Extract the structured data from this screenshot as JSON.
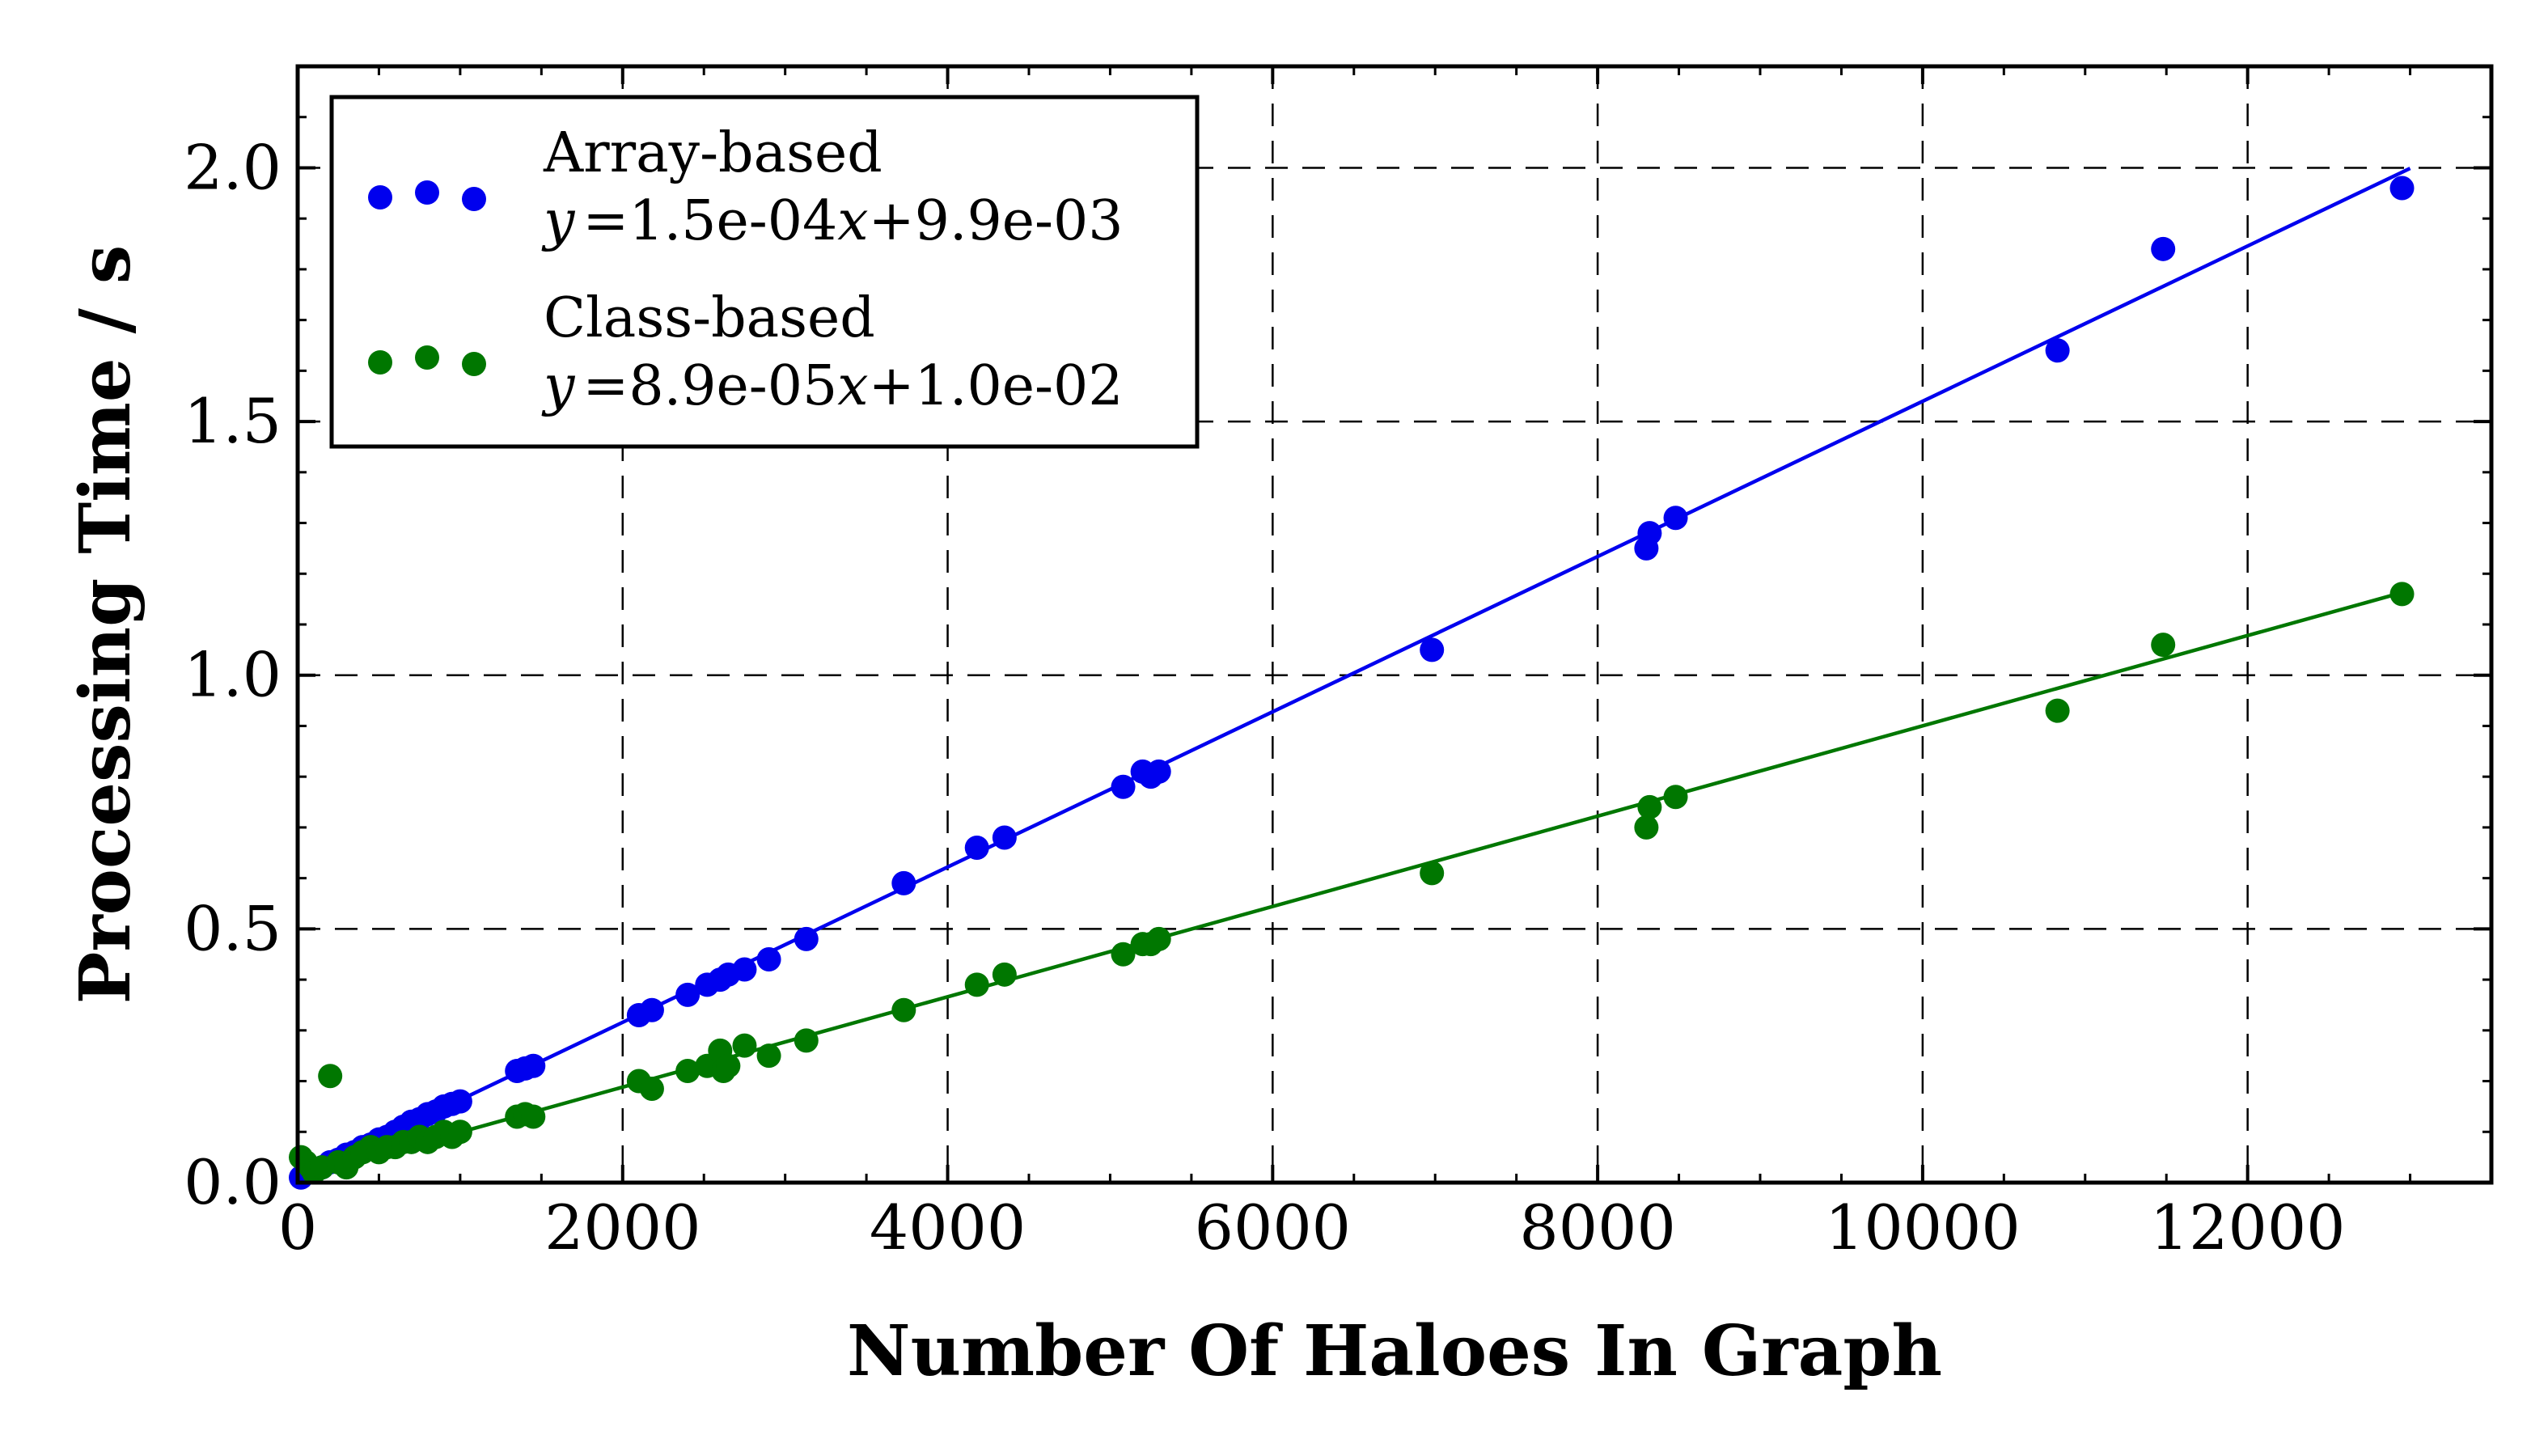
{
  "chart_data": {
    "type": "scatter",
    "title": "",
    "xlabel": "Number Of Haloes In Graph",
    "ylabel": "Processing Time / s",
    "xlim": [
      0,
      13500
    ],
    "ylim": [
      0,
      2.2
    ],
    "xticks": [
      0,
      2000,
      4000,
      6000,
      8000,
      10000,
      12000
    ],
    "yticks": [
      0.0,
      0.5,
      1.0,
      1.5,
      2.0
    ],
    "xtick_labels": [
      "0",
      "2000",
      "4000",
      "6000",
      "8000",
      "10000",
      "12000"
    ],
    "ytick_labels": [
      "0.0",
      "0.5",
      "1.0",
      "1.5",
      "2.0"
    ],
    "grid": true,
    "grid_style": "dashed",
    "legend_position": "top-left",
    "series": [
      {
        "name": "Array-based",
        "fit_label": "=1.5e-04",
        "fit_prefix": "y",
        "fit_x": "x",
        "fit_suffix": "+9.9e-03",
        "color": "#0000ee",
        "fit": {
          "slope": 0.000153,
          "intercept": 0.0099
        },
        "x": [
          20,
          60,
          100,
          150,
          200,
          250,
          300,
          350,
          400,
          450,
          500,
          550,
          600,
          650,
          700,
          750,
          800,
          850,
          900,
          950,
          1000,
          1350,
          1400,
          1450,
          2100,
          2180,
          2400,
          2520,
          2600,
          2650,
          2750,
          2900,
          3130,
          3730,
          4180,
          4350,
          5080,
          5200,
          5250,
          5300,
          6980,
          8300,
          8320,
          8480,
          10830,
          11480,
          12950
        ],
        "y": [
          0.01,
          0.02,
          0.025,
          0.03,
          0.04,
          0.045,
          0.055,
          0.06,
          0.07,
          0.075,
          0.085,
          0.09,
          0.1,
          0.11,
          0.12,
          0.125,
          0.135,
          0.14,
          0.15,
          0.155,
          0.16,
          0.22,
          0.225,
          0.23,
          0.33,
          0.34,
          0.37,
          0.39,
          0.4,
          0.41,
          0.42,
          0.44,
          0.48,
          0.59,
          0.66,
          0.68,
          0.78,
          0.81,
          0.8,
          0.81,
          1.05,
          1.25,
          1.28,
          1.31,
          1.64,
          1.84,
          1.96
        ]
      },
      {
        "name": "Class-based",
        "fit_label": "=8.9e-05",
        "fit_prefix": "y",
        "fit_x": "x",
        "fit_suffix": "+1.0e-02",
        "color": "#007700",
        "fit": {
          "slope": 8.9e-05,
          "intercept": 0.0102
        },
        "x": [
          20,
          50,
          80,
          100,
          150,
          200,
          250,
          300,
          350,
          400,
          450,
          500,
          550,
          600,
          650,
          700,
          750,
          800,
          850,
          900,
          950,
          1000,
          1350,
          1400,
          1450,
          2100,
          2180,
          2400,
          2520,
          2600,
          2620,
          2650,
          2750,
          2900,
          3130,
          3730,
          4180,
          4350,
          5080,
          5200,
          5250,
          5300,
          6980,
          8300,
          8320,
          8480,
          10830,
          11480,
          12950
        ],
        "y": [
          0.05,
          0.04,
          0.03,
          0.02,
          0.03,
          0.21,
          0.04,
          0.03,
          0.05,
          0.06,
          0.07,
          0.06,
          0.07,
          0.07,
          0.08,
          0.08,
          0.09,
          0.08,
          0.09,
          0.1,
          0.09,
          0.1,
          0.13,
          0.135,
          0.13,
          0.2,
          0.185,
          0.22,
          0.23,
          0.26,
          0.22,
          0.23,
          0.27,
          0.25,
          0.28,
          0.34,
          0.39,
          0.41,
          0.45,
          0.47,
          0.47,
          0.48,
          0.61,
          0.7,
          0.74,
          0.76,
          0.93,
          1.06,
          1.16
        ]
      }
    ]
  }
}
